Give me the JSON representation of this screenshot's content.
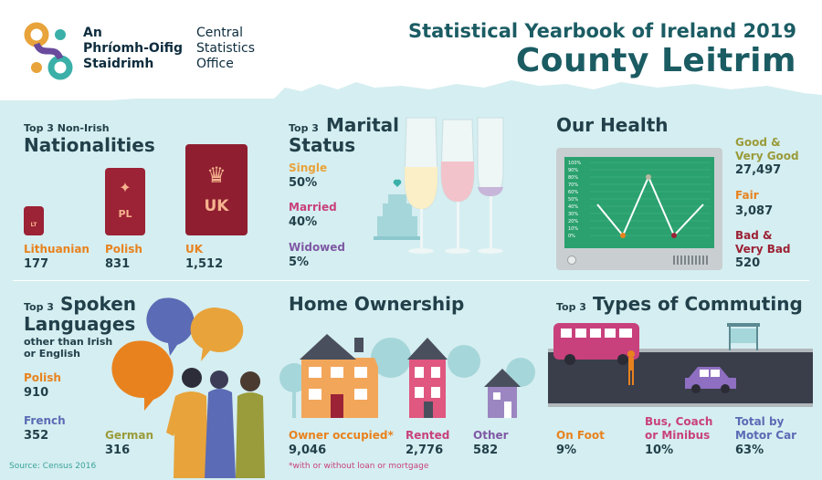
{
  "header": {
    "logo_irish": [
      "An",
      "Phríomh-Oifig",
      "Staidrimh"
    ],
    "logo_english": [
      "Central",
      "Statistics",
      "Office"
    ],
    "title_small": "Statistical Yearbook of Ireland 2019",
    "title_big": "County Leitrim"
  },
  "nationalities": {
    "heading_small": "Top 3 Non-Irish",
    "heading_big": "Nationalities",
    "items": [
      {
        "label": "Lithuanian",
        "value": "177",
        "passport_code": "LT",
        "color": "#9c2235"
      },
      {
        "label": "Polish",
        "value": "831",
        "passport_code": "PL",
        "color": "#9c2235"
      },
      {
        "label": "UK",
        "value": "1,512",
        "passport_code": "UK",
        "color": "#8f1f30"
      }
    ],
    "label_color": "#e8821e"
  },
  "marital": {
    "heading_small": "Top 3",
    "heading_big_1": "Marital",
    "heading_big_2": "Status",
    "items": [
      {
        "label": "Single",
        "value": "50%",
        "color": "#e8a33a"
      },
      {
        "label": "Married",
        "value": "40%",
        "color": "#c8417c"
      },
      {
        "label": "Widowed",
        "value": "5%",
        "color": "#7e59a4"
      }
    ]
  },
  "health": {
    "heading": "Our Health",
    "items": [
      {
        "label_1": "Good &",
        "label_2": "Very Good",
        "value": "27,497",
        "color": "#9a9b3a"
      },
      {
        "label_1": "Fair",
        "label_2": "",
        "value": "3,087",
        "color": "#e8821e"
      },
      {
        "label_1": "Bad &",
        "label_2": "Very Bad",
        "value": "520",
        "color": "#9c2235"
      }
    ],
    "monitor_ticks": [
      "100%",
      "90%",
      "80%",
      "70%",
      "60%",
      "50%",
      "40%",
      "30%",
      "20%",
      "10%",
      "0%"
    ]
  },
  "languages": {
    "heading_small": "Top 3",
    "heading_big_1": "Spoken",
    "heading_big_2": "Languages",
    "heading_sub_1": "other than Irish",
    "heading_sub_2": "or English",
    "items": [
      {
        "label": "Polish",
        "value": "910",
        "color": "#e8821e"
      },
      {
        "label": "French",
        "value": "352",
        "color": "#5b6bb5"
      },
      {
        "label": "German",
        "value": "316",
        "color": "#9a9b3a"
      }
    ]
  },
  "ownership": {
    "heading": "Home Ownership",
    "items": [
      {
        "label": "Owner occupied*",
        "value": "9,046",
        "color": "#e8821e"
      },
      {
        "label": "Rented",
        "value": "2,776",
        "color": "#c8417c"
      },
      {
        "label": "Other",
        "value": "582",
        "color": "#7e59a4"
      }
    ],
    "footnote": "*with or without loan or mortgage"
  },
  "commuting": {
    "heading_small": "Top 3",
    "heading_big": "Types of Commuting",
    "items": [
      {
        "label_1": "On Foot",
        "label_2": "",
        "value": "9%",
        "color": "#e8821e"
      },
      {
        "label_1": "Bus, Coach",
        "label_2": "or Minibus",
        "value": "10%",
        "color": "#c8417c"
      },
      {
        "label_1": "Total by",
        "label_2": "Motor Car",
        "value": "63%",
        "color": "#5b6bb5"
      }
    ]
  },
  "source": "Source: Census 2016"
}
